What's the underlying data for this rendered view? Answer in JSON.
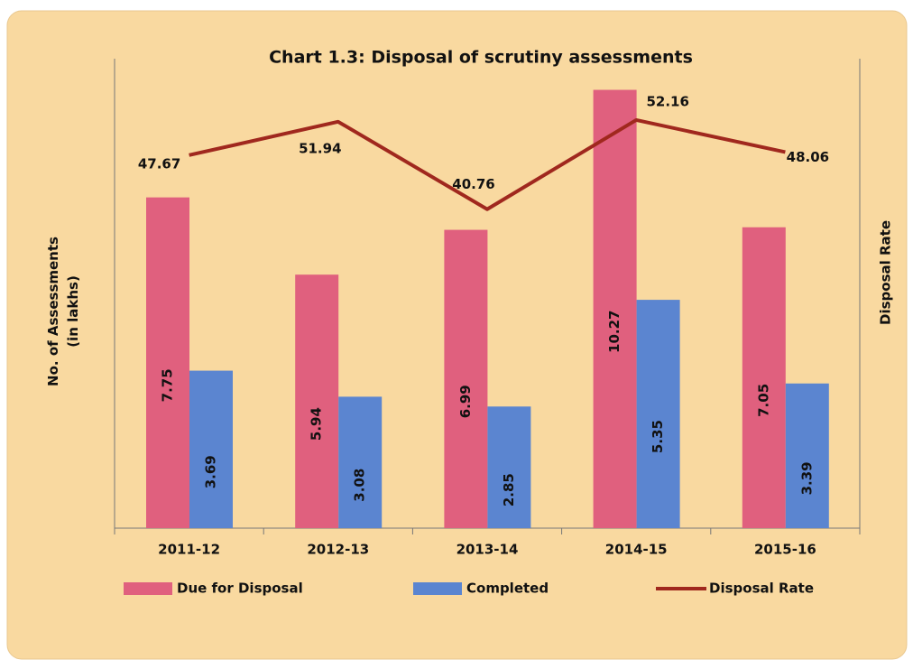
{
  "chart_data": {
    "type": "bar",
    "title": "Chart 1.3: Disposal of scrutiny assessments",
    "y_label": "No. of Assessments\n(in lakhs)",
    "y2_label": "Disposal Rate",
    "categories": [
      "2011-12",
      "2012-13",
      "2013-14",
      "2014-15",
      "2015-16"
    ],
    "series": [
      {
        "name": "Due for Disposal",
        "type": "bar",
        "color": "#e0607e",
        "values": [
          7.75,
          5.94,
          6.99,
          10.27,
          7.05
        ]
      },
      {
        "name": "Completed",
        "type": "bar",
        "color": "#5b85d0",
        "values": [
          3.69,
          3.08,
          2.85,
          5.35,
          3.39
        ]
      },
      {
        "name": "Disposal Rate",
        "type": "line",
        "axis": "y2",
        "color": "#a0281e",
        "values": [
          47.67,
          51.94,
          40.76,
          52.16,
          48.06
        ]
      }
    ],
    "ylim": [
      0,
      11
    ],
    "y2lim": [
      0,
      60
    ],
    "legend": "bottom"
  }
}
